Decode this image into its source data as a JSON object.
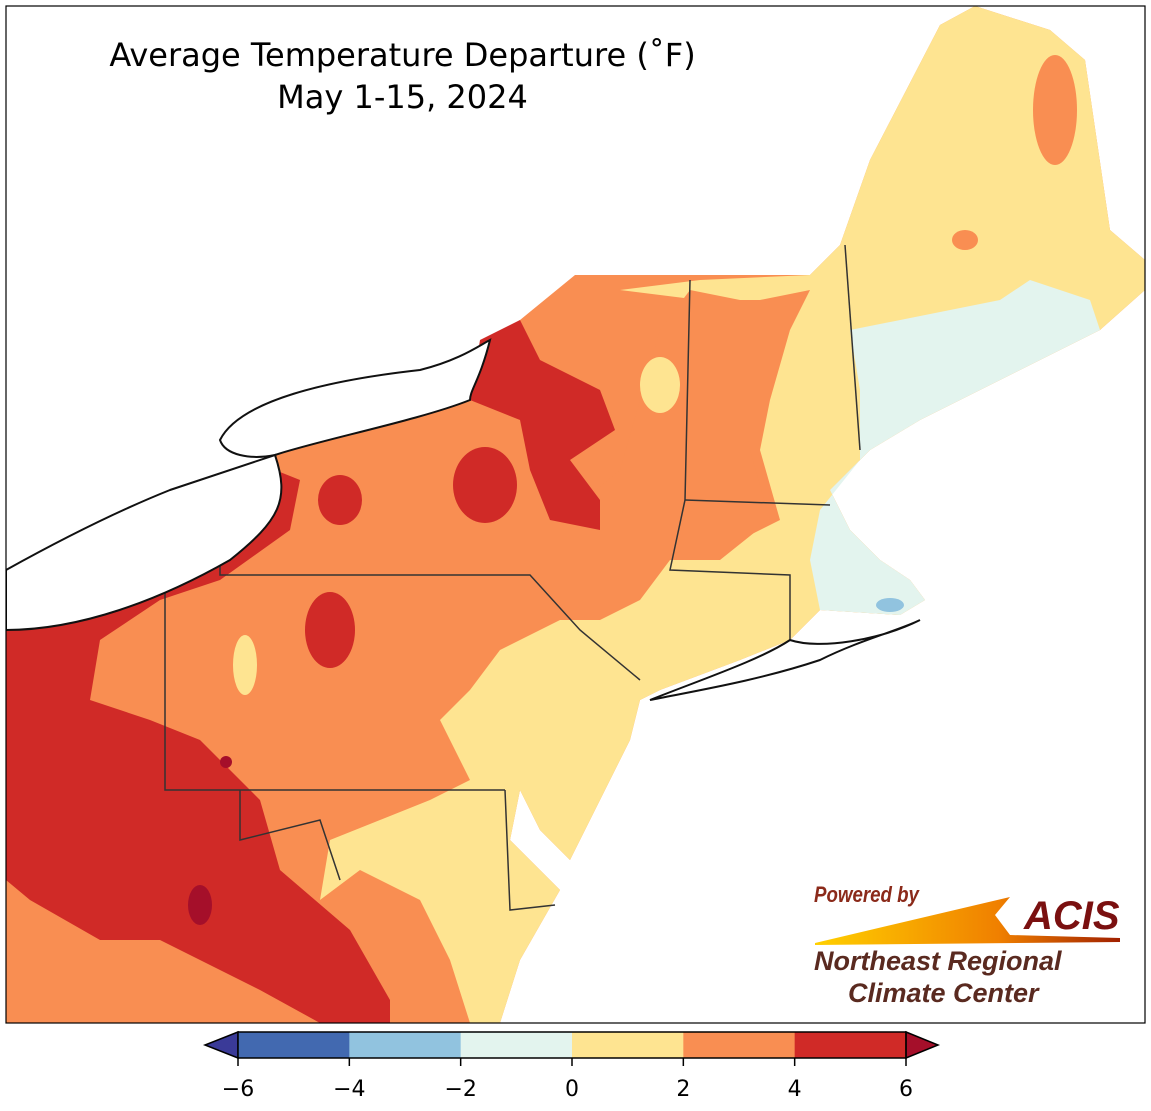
{
  "title": {
    "line1": "Average Temperature Departure (˚F)",
    "line2": "May 1-15, 2024"
  },
  "colorbar": {
    "ticks": [
      "−6",
      "−4",
      "−2",
      "0",
      "2",
      "4",
      "6"
    ],
    "colors": [
      "#3a3a98",
      "#4269b0",
      "#91c3df",
      "#e3f4ee",
      "#fee491",
      "#f98e52",
      "#d02a27",
      "#a50f2a"
    ],
    "units": "˚F"
  },
  "legend_classes": [
    "< -6",
    "-6 to -4",
    "-4 to -2",
    "-2 to 0",
    "0 to 2",
    "2 to 4",
    "4 to 6",
    "> 6"
  ],
  "logo": {
    "powered": "Powered by",
    "acis": "ACIS",
    "line1": "Northeast Regional",
    "line2": "Climate Center"
  }
}
